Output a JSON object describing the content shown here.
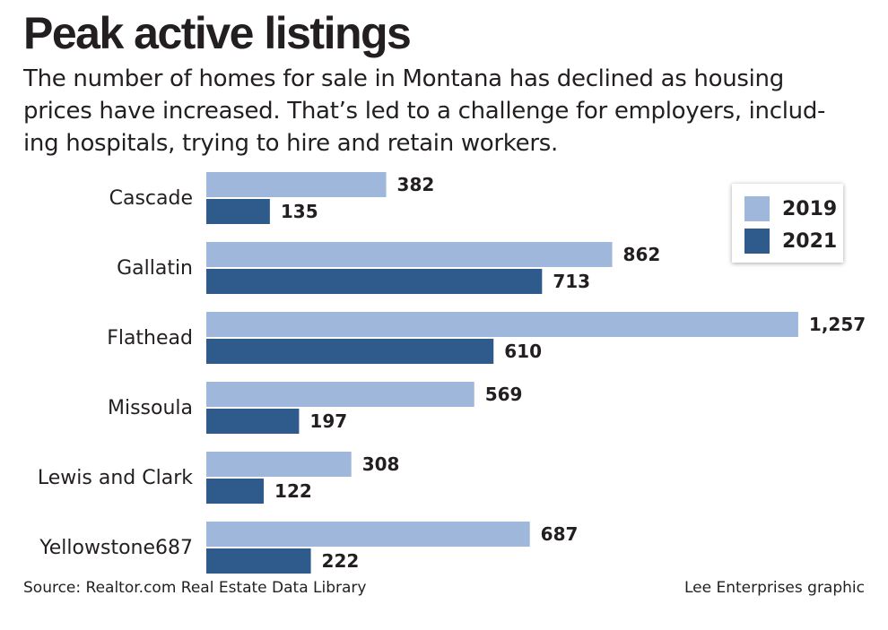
{
  "title": "Peak active listings",
  "subtitle_lines": [
    "The number of homes for sale in Montana has declined as housing",
    "prices have increased. That’s led to a challenge for employers, includ-",
    "ing hospitals, trying to hire and retain workers."
  ],
  "source": "Source: Realtor.com Real Estate Data Library",
  "credit": "Lee Enterprises graphic",
  "colors": {
    "s2019": "#9fb7db",
    "s2021": "#2e5b8c"
  },
  "chart_data": {
    "type": "bar",
    "orientation": "horizontal",
    "categories": [
      "Cascade",
      "Gallatin",
      "Flathead",
      "Missoula",
      "Lewis and Clark",
      "Yellowstone687"
    ],
    "series": [
      {
        "name": "2019",
        "values": [
          382,
          862,
          1257,
          569,
          308,
          687
        ],
        "labels": [
          "382",
          "862",
          "1,257",
          "569",
          "308",
          "687"
        ]
      },
      {
        "name": "2021",
        "values": [
          135,
          713,
          610,
          197,
          122,
          222
        ],
        "labels": [
          "135",
          "713",
          "610",
          "197",
          "122",
          "222"
        ]
      }
    ],
    "legend_position": "top-right",
    "grid": false
  }
}
